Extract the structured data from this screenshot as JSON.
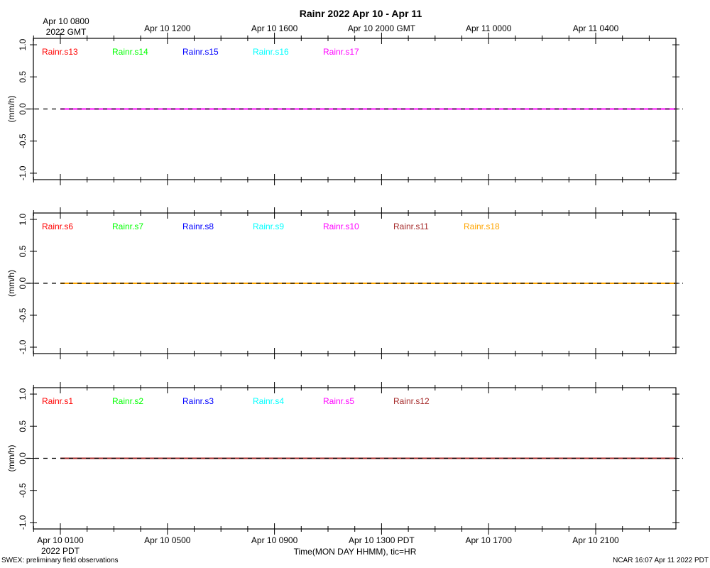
{
  "title": "Rainr 2022 Apr 10 - Apr 11",
  "top_axis": {
    "labels": [
      {
        "t": 0,
        "lines": [
          "Apr 10 0800",
          "2022 GMT"
        ]
      },
      {
        "t": 4,
        "lines": [
          "Apr 10 1200"
        ]
      },
      {
        "t": 8,
        "lines": [
          "Apr 10 1600"
        ]
      },
      {
        "t": 12,
        "lines": [
          "Apr 10 2000 GMT"
        ]
      },
      {
        "t": 16,
        "lines": [
          "Apr 11 0000"
        ]
      },
      {
        "t": 20,
        "lines": [
          "Apr 11 0400"
        ]
      }
    ]
  },
  "bottom_axis": {
    "labels": [
      {
        "t": 0,
        "lines": [
          "Apr 10 0100",
          "2022 PDT"
        ]
      },
      {
        "t": 4,
        "lines": [
          "Apr 10 0500"
        ]
      },
      {
        "t": 8,
        "lines": [
          "Apr 10 0900"
        ]
      },
      {
        "t": 12,
        "lines": [
          "Apr 10 1300 PDT"
        ]
      },
      {
        "t": 16,
        "lines": [
          "Apr 10 1700"
        ]
      },
      {
        "t": 20,
        "lines": [
          "Apr 10 2100"
        ]
      }
    ],
    "xlabel": "Time(MON DAY HHMM), tic=HR"
  },
  "footer": {
    "left": "SWEX: preliminary field observations",
    "right": "NCAR 16:07 Apr 11 2022 PDT"
  },
  "chart_data": [
    {
      "type": "line",
      "ylabel": "(mm/h)",
      "ylim": [
        -1.1,
        1.1
      ],
      "yticks": [
        -1.0,
        -0.5,
        0.0,
        0.5,
        1.0
      ],
      "series": [
        {
          "name": "Rainr.s13",
          "color": "#ff0000",
          "x": [
            0,
            23
          ],
          "y": [
            0,
            0
          ]
        },
        {
          "name": "Rainr.s14",
          "color": "#00ff00",
          "x": [
            0,
            23
          ],
          "y": [
            0,
            0
          ]
        },
        {
          "name": "Rainr.s15",
          "color": "#0000ff",
          "x": [
            0,
            23
          ],
          "y": [
            0,
            0
          ]
        },
        {
          "name": "Rainr.s16",
          "color": "#00ffff",
          "x": [
            0,
            23
          ],
          "y": [
            0,
            0
          ]
        },
        {
          "name": "Rainr.s17",
          "color": "#ff00ff",
          "x": [
            0,
            23
          ],
          "y": [
            0,
            0
          ]
        }
      ]
    },
    {
      "type": "line",
      "ylabel": "(mm/h)",
      "ylim": [
        -1.1,
        1.1
      ],
      "yticks": [
        -1.0,
        -0.5,
        0.0,
        0.5,
        1.0
      ],
      "series": [
        {
          "name": "Rainr.s6",
          "color": "#ff0000",
          "x": [
            0,
            23
          ],
          "y": [
            0,
            0
          ]
        },
        {
          "name": "Rainr.s7",
          "color": "#00ff00",
          "x": [
            0,
            23
          ],
          "y": [
            0,
            0
          ]
        },
        {
          "name": "Rainr.s8",
          "color": "#0000ff",
          "x": [
            0,
            23
          ],
          "y": [
            0,
            0
          ]
        },
        {
          "name": "Rainr.s9",
          "color": "#00ffff",
          "x": [
            0,
            23
          ],
          "y": [
            0,
            0
          ]
        },
        {
          "name": "Rainr.s10",
          "color": "#ff00ff",
          "x": [
            0,
            23
          ],
          "y": [
            0,
            0
          ]
        },
        {
          "name": "Rainr.s11",
          "color": "#a52a2a",
          "x": [
            0,
            23
          ],
          "y": [
            0,
            0
          ]
        },
        {
          "name": "Rainr.s18",
          "color": "#ffa500",
          "x": [
            0,
            23
          ],
          "y": [
            0,
            0
          ]
        }
      ]
    },
    {
      "type": "line",
      "ylabel": "(mm/h)",
      "ylim": [
        -1.1,
        1.1
      ],
      "yticks": [
        -1.0,
        -0.5,
        0.0,
        0.5,
        1.0
      ],
      "series": [
        {
          "name": "Rainr.s1",
          "color": "#ff0000",
          "x": [
            0,
            23
          ],
          "y": [
            0,
            0
          ]
        },
        {
          "name": "Rainr.s2",
          "color": "#00ff00",
          "x": [
            0,
            23
          ],
          "y": [
            0,
            0
          ]
        },
        {
          "name": "Rainr.s3",
          "color": "#0000ff",
          "x": [
            0,
            23
          ],
          "y": [
            0,
            0
          ]
        },
        {
          "name": "Rainr.s4",
          "color": "#00ffff",
          "x": [
            0,
            23
          ],
          "y": [
            0,
            0
          ]
        },
        {
          "name": "Rainr.s5",
          "color": "#ff00ff",
          "x": [
            0,
            23
          ],
          "y": [
            0,
            0
          ]
        },
        {
          "name": "Rainr.s12",
          "color": "#a52a2a",
          "x": [
            0,
            23
          ],
          "y": [
            0,
            0
          ]
        }
      ]
    }
  ]
}
